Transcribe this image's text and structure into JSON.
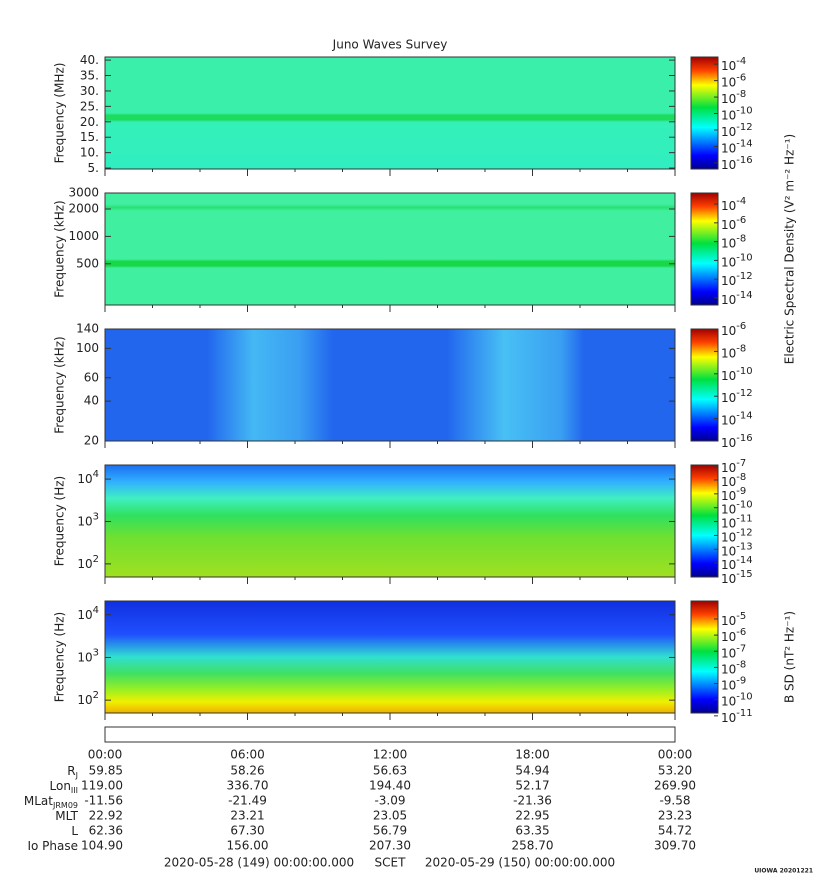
{
  "title": "Juno Waves Survey",
  "chart_data": [
    {
      "type": "spectrogram",
      "ylabel": "Frequency (MHz)",
      "log": false,
      "ylim": [
        4.7,
        41
      ],
      "yticks": [
        {
          "value": 5,
          "label": "5."
        },
        {
          "value": 10,
          "label": "10."
        },
        {
          "value": 15,
          "label": "15."
        },
        {
          "value": 20,
          "label": "20."
        },
        {
          "value": 25,
          "label": "25."
        },
        {
          "value": 30,
          "label": "30."
        },
        {
          "value": 35,
          "label": "35."
        },
        {
          "value": 40,
          "label": "40."
        }
      ],
      "colorbar": {
        "log": true,
        "lim": [
          1.8e-17,
          0.00074
        ],
        "ticks": [
          {
            "value": 0.0001,
            "label": "10",
            "sup": "-4"
          },
          {
            "value": 1e-06,
            "label": "10",
            "sup": "-6"
          },
          {
            "value": 1e-08,
            "label": "10",
            "sup": "-8"
          },
          {
            "value": 1e-10,
            "label": "10",
            "sup": "-10"
          },
          {
            "value": 1e-12,
            "label": "10",
            "sup": "-12"
          },
          {
            "value": 1e-14,
            "label": "10",
            "sup": "-14"
          },
          {
            "value": 1e-16,
            "label": "10",
            "sup": "-16"
          }
        ]
      }
    },
    {
      "type": "spectrogram",
      "ylabel": "Frequency (kHz)",
      "log": true,
      "ylim": [
        176,
        3000
      ],
      "yticks": [
        500,
        1000,
        2000,
        3000
      ],
      "colorbar": {
        "log": true,
        "lim": [
          1.8e-15,
          0.0015
        ],
        "label": "Electric Spectral Density (V² m⁻² Hz⁻¹)",
        "ticks": [
          {
            "value": 0.0001,
            "label": "10",
            "sup": "-4"
          },
          {
            "value": 1e-06,
            "label": "10",
            "sup": "-6"
          },
          {
            "value": 1e-08,
            "label": "10",
            "sup": "-8"
          },
          {
            "value": 1e-10,
            "label": "10",
            "sup": "-10"
          },
          {
            "value": 1e-12,
            "label": "10",
            "sup": "-12"
          },
          {
            "value": 1e-14,
            "label": "10",
            "sup": "-14"
          }
        ]
      }
    },
    {
      "type": "spectrogram",
      "ylabel": "Frequency (kHz)",
      "log": true,
      "ylim": [
        20,
        140
      ],
      "yticks": [
        20,
        40,
        60,
        100,
        140
      ],
      "colorbar": {
        "log": true,
        "lim": [
          1e-16,
          1e-06
        ],
        "ticks": [
          {
            "value": 1e-06,
            "label": "10",
            "sup": "-6"
          },
          {
            "value": 1e-08,
            "label": "10",
            "sup": "-8"
          },
          {
            "value": 1e-10,
            "label": "10",
            "sup": "-10"
          },
          {
            "value": 1e-12,
            "label": "10",
            "sup": "-12"
          },
          {
            "value": 1e-14,
            "label": "10",
            "sup": "-14"
          },
          {
            "value": 1e-16,
            "label": "10",
            "sup": "-16"
          }
        ]
      }
    },
    {
      "type": "spectrogram",
      "ylabel": "Frequency (Hz)",
      "log": true,
      "ylim": [
        49,
        21500
      ],
      "yticks": [
        {
          "value": 100,
          "label": "10",
          "sup": "2"
        },
        {
          "value": 1000,
          "label": "10",
          "sup": "3"
        },
        {
          "value": 10000,
          "label": "10",
          "sup": "4"
        }
      ],
      "colorbar": {
        "log": true,
        "lim": [
          1e-15,
          1.2e-07
        ],
        "ticks": [
          {
            "value": 1e-07,
            "label": "10",
            "sup": "-7"
          },
          {
            "value": 1e-08,
            "label": "10",
            "sup": "-8"
          },
          {
            "value": 1e-09,
            "label": "10",
            "sup": "-9"
          },
          {
            "value": 1e-10,
            "label": "10",
            "sup": "-10"
          },
          {
            "value": 1e-11,
            "label": "10",
            "sup": "-11"
          },
          {
            "value": 1e-12,
            "label": "10",
            "sup": "-12"
          },
          {
            "value": 1e-13,
            "label": "10",
            "sup": "-13"
          },
          {
            "value": 1e-14,
            "label": "10",
            "sup": "-14"
          },
          {
            "value": 1e-15,
            "label": "10",
            "sup": "-15"
          }
        ]
      }
    },
    {
      "type": "spectrogram",
      "ylabel": "Frequency (Hz)",
      "log": true,
      "ylim": [
        50,
        21000
      ],
      "yticks": [
        {
          "value": 100,
          "label": "10",
          "sup": "2"
        },
        {
          "value": 1000,
          "label": "10",
          "sup": "3"
        },
        {
          "value": 10000,
          "label": "10",
          "sup": "4"
        }
      ],
      "colorbar": {
        "log": true,
        "lim": [
          1.5e-11,
          0.00013
        ],
        "label": "B SD (nT² Hz⁻¹)",
        "ticks": [
          {
            "value": 1e-05,
            "label": "10",
            "sup": "-5"
          },
          {
            "value": 1e-06,
            "label": "10",
            "sup": "-6"
          },
          {
            "value": 1e-07,
            "label": "10",
            "sup": "-7"
          },
          {
            "value": 1e-08,
            "label": "10",
            "sup": "-8"
          },
          {
            "value": 1e-09,
            "label": "10",
            "sup": "-9"
          },
          {
            "value": 1e-10,
            "label": "10",
            "sup": "-10"
          },
          {
            "value": 1e-11,
            "label": "10",
            "sup": "-11"
          }
        ]
      }
    }
  ],
  "time_axis": {
    "ticks": [
      "00:00",
      "06:00",
      "12:00",
      "18:00",
      "00:00"
    ]
  },
  "ephemeris": {
    "rows": [
      {
        "label": "R",
        "sub": "J",
        "values": [
          "59.85",
          "58.26",
          "56.63",
          "54.94",
          "53.20"
        ]
      },
      {
        "label": "Lon",
        "sub": "III",
        "values": [
          "119.00",
          "336.70",
          "194.40",
          "52.17",
          "269.90"
        ]
      },
      {
        "label": "MLat",
        "sub": "JRM09",
        "values": [
          "-11.56",
          "-21.49",
          "-3.09",
          "-21.36",
          "-9.58"
        ]
      },
      {
        "label": "MLT",
        "values": [
          "22.92",
          "23.21",
          "23.05",
          "22.95",
          "23.23"
        ]
      },
      {
        "label": "L",
        "values": [
          "62.36",
          "67.30",
          "56.79",
          "63.35",
          "54.72"
        ]
      },
      {
        "label": "Io Phase",
        "values": [
          "104.90",
          "156.00",
          "207.30",
          "258.70",
          "309.70"
        ]
      }
    ]
  },
  "footer": {
    "start": "2020-05-28 (149) 00:00:00.000",
    "label": "SCET",
    "end": "2020-05-29 (150) 00:00:00.000"
  },
  "credit": "UIOWA 20201221"
}
